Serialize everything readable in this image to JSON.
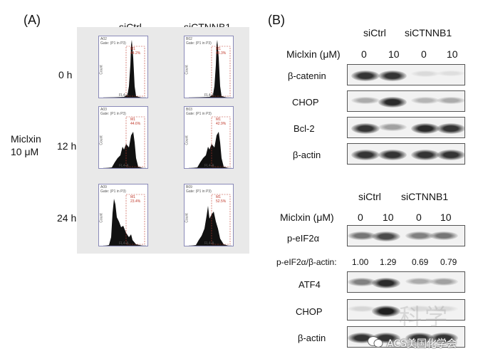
{
  "panel_a": {
    "label": "(A)",
    "col_headers": [
      "siCtrl",
      "siCTNNB1"
    ],
    "treatment": [
      "Miclxin",
      "10 μM"
    ],
    "time_labels": [
      "0 h",
      "12 h",
      "24 h"
    ],
    "histograms": [
      [
        {
          "id": "A02",
          "gate": "Gate: (P1 in P3)",
          "pct": "44.2%",
          "shape": "peak"
        },
        {
          "id": "B02",
          "gate": "Gate: (P1 in P3)",
          "pct": "45.3%",
          "shape": "peak"
        }
      ],
      [
        {
          "id": "A03",
          "gate": "Gate: (P1 in P3)",
          "pct": "44.6%",
          "shape": "broad"
        },
        {
          "id": "B03",
          "gate": "Gate: (P1 in P3)",
          "pct": "42.9%",
          "shape": "broad"
        }
      ],
      [
        {
          "id": "A09",
          "gate": "Gate: (P1 in P3)",
          "pct": "23.4%",
          "shape": "shift"
        },
        {
          "id": "B09",
          "gate": "Gate: (P1 in P3)",
          "pct": "52.5%",
          "shape": "broad2"
        }
      ]
    ],
    "axis_x": "FL4-A",
    "axis_y": "Count",
    "gate_tag": "M1"
  },
  "panel_b": {
    "label": "(B)",
    "top": {
      "groups": [
        "siCtrl",
        "siCTNNB1"
      ],
      "dose_label": "Miclxin (μM)",
      "doses": [
        "0",
        "10",
        "0",
        "10"
      ],
      "rows": [
        {
          "label": "β-catenin",
          "intensity": [
            0.85,
            0.85,
            0.08,
            0.06
          ]
        },
        {
          "label": "CHOP",
          "intensity": [
            0.3,
            0.9,
            0.25,
            0.3
          ]
        },
        {
          "label": "Bcl-2",
          "intensity": [
            0.85,
            0.35,
            0.9,
            0.85
          ]
        },
        {
          "label": "β-actin",
          "intensity": [
            0.85,
            0.85,
            0.85,
            0.85
          ]
        }
      ]
    },
    "bottom": {
      "groups": [
        "siCtrl",
        "siCTNNB1"
      ],
      "dose_label": "Miclxin (μM)",
      "doses": [
        "0",
        "10",
        "0",
        "10"
      ],
      "rows": [
        {
          "label": "p-eIF2α",
          "intensity": [
            0.55,
            0.75,
            0.5,
            0.55
          ]
        },
        {
          "label": "ATF4",
          "intensity": [
            0.5,
            0.9,
            0.3,
            0.35
          ]
        },
        {
          "label": "CHOP",
          "intensity": [
            0.1,
            0.95,
            0.08,
            0.08
          ]
        },
        {
          "label": "β-actin",
          "intensity": [
            0.85,
            0.85,
            0.85,
            0.85
          ]
        }
      ],
      "ratio_label": "p-eIF2α/β-actin:",
      "ratios": [
        "1.00",
        "1.29",
        "0.69",
        "0.79"
      ]
    }
  },
  "watermark": "ACS美国化学会",
  "watermark_bg": "科学"
}
